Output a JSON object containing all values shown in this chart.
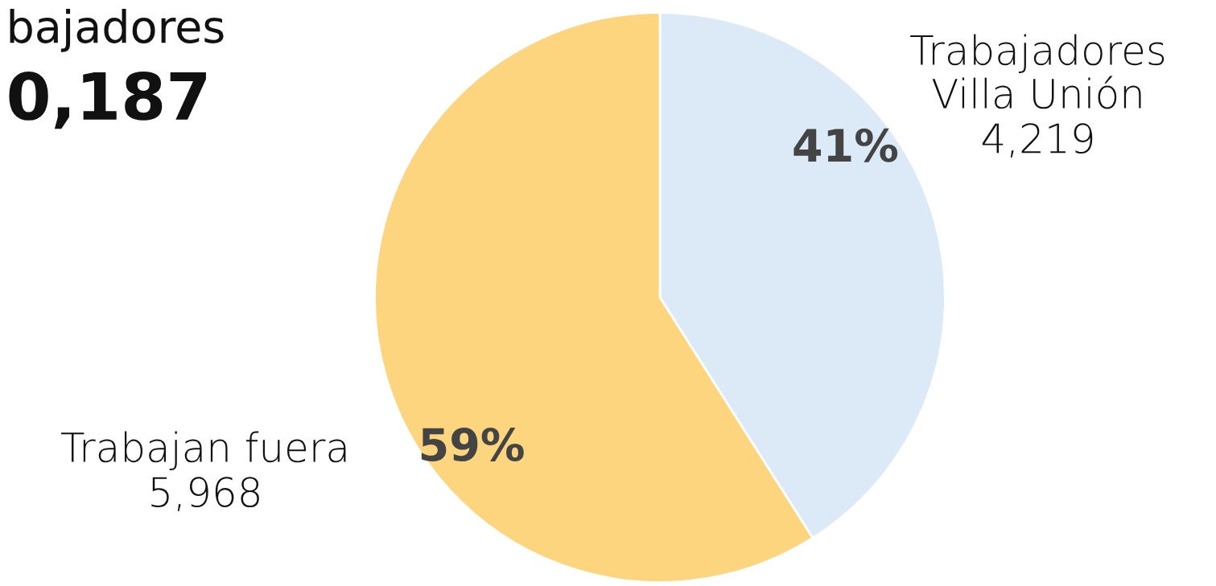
{
  "chart_data": {
    "type": "pie",
    "annotations": [
      "bajadores",
      "0,187",
      "4,219",
      "5,968"
    ],
    "categories": [
      "Trabajadores\nVilla Unión",
      "Trabajan fuera"
    ],
    "values": [
      41,
      59
    ],
    "colors": [
      "#dce9f7",
      "#fdd57e"
    ],
    "value_labels": [
      "41%",
      "59%"
    ]
  }
}
